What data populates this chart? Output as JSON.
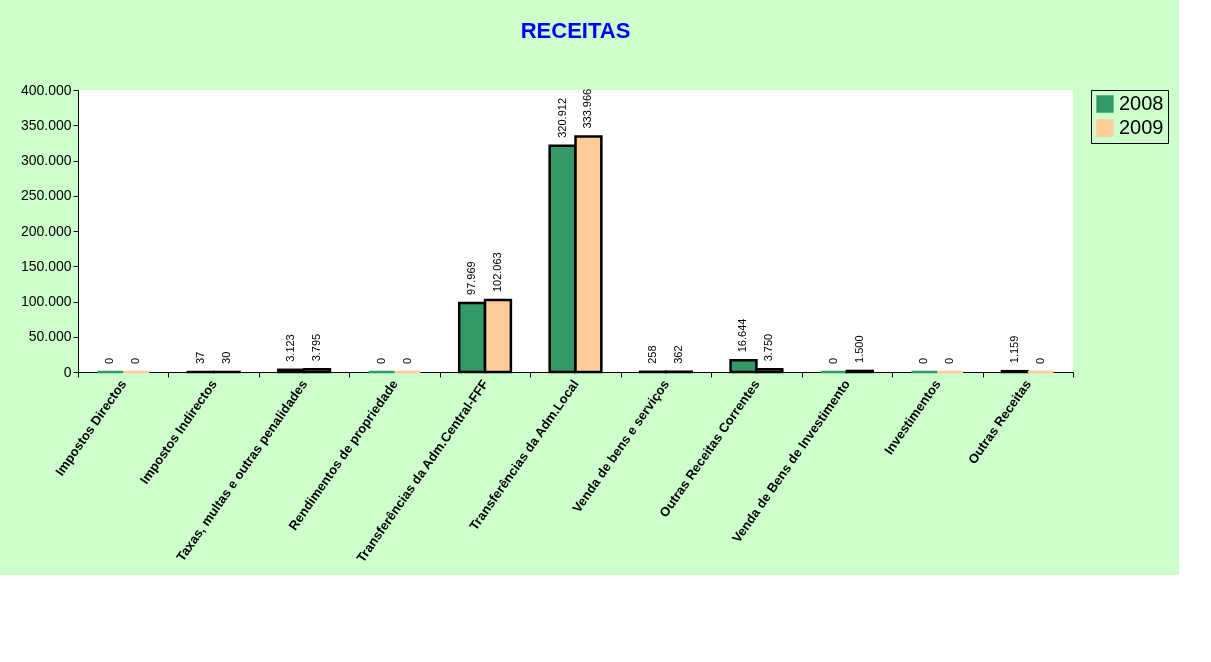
{
  "chart_data": {
    "type": "bar",
    "title": "RECEITAS",
    "categories": [
      "Impostos Directos",
      "Impostos Indirectos",
      "Taxas, multas e outras penalidades",
      "Rendimentos de propriedade",
      "Transferências da Adm.Central-FFF",
      "Transferências da Adm.Local",
      "Venda de bens e serviços",
      "Outras Receitas Correntes",
      "Venda de Bens de Investimento",
      "Investimentos",
      "Outras Receitas"
    ],
    "series": [
      {
        "name": "2008",
        "color": "#339966",
        "values": [
          0,
          37,
          3123,
          0,
          97969,
          320912,
          258,
          16644,
          0,
          0,
          1159
        ],
        "value_labels": [
          "0",
          "37",
          "3.123",
          "0",
          "97.969",
          "320.912",
          "258",
          "16.644",
          "0",
          "0",
          "1.159"
        ]
      },
      {
        "name": "2009",
        "color": "#ffcc99",
        "values": [
          0,
          30,
          3795,
          0,
          102063,
          333966,
          362,
          3750,
          1500,
          0,
          0
        ],
        "value_labels": [
          "0",
          "30",
          "3.795",
          "0",
          "102.063",
          "333.966",
          "362",
          "3.750",
          "1.500",
          "0",
          "0"
        ]
      }
    ],
    "ylim": [
      0,
      400000
    ],
    "yticks": [
      {
        "value": 0,
        "label": "0"
      },
      {
        "value": 50000,
        "label": "50.000"
      },
      {
        "value": 100000,
        "label": "100.000"
      },
      {
        "value": 150000,
        "label": "150.000"
      },
      {
        "value": 200000,
        "label": "200.000"
      },
      {
        "value": 250000,
        "label": "250.000"
      },
      {
        "value": 300000,
        "label": "300.000"
      },
      {
        "value": 350000,
        "label": "350.000"
      },
      {
        "value": 400000,
        "label": "400.000"
      }
    ],
    "grid": false,
    "legend": "top right"
  }
}
